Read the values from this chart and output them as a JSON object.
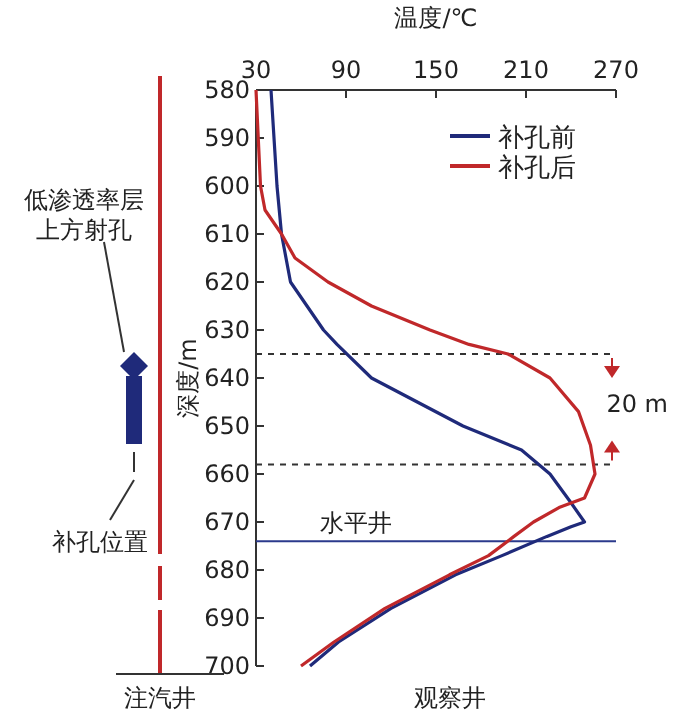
{
  "chart_data": {
    "type": "line",
    "xlabel": "温度/℃",
    "ylabel": "深度/m",
    "xlim": [
      30,
      270
    ],
    "xticks": [
      30,
      90,
      150,
      210,
      270
    ],
    "ylim": [
      700,
      580
    ],
    "yticks": [
      580,
      590,
      600,
      610,
      620,
      630,
      640,
      650,
      660,
      670,
      680,
      690,
      700
    ],
    "legend": "top right",
    "grid": false,
    "marker": "none",
    "line_style": "solid",
    "series": [
      {
        "name": "补孔前",
        "color": "#1f2a7a",
        "x": [
          40,
          44,
          47,
          53,
          75,
          84,
          107,
          168,
          207,
          226,
          240,
          249,
          240,
          224,
          194,
          163,
          120,
          85,
          66
        ],
        "values": [
          580,
          600,
          610,
          620,
          630,
          633,
          640,
          650,
          655,
          660,
          666,
          670,
          671,
          673,
          677,
          681,
          688,
          695,
          700
        ]
      },
      {
        "name": "补孔后",
        "color": "#c0282a",
        "x": [
          30,
          33,
          36,
          47,
          56,
          78,
          107,
          146,
          172,
          198,
          226,
          245,
          253,
          256,
          249,
          232,
          215,
          202,
          185,
          159,
          116,
          82,
          60
        ],
        "values": [
          580,
          600,
          605,
          610,
          615,
          620,
          625,
          630,
          633,
          635,
          640,
          647,
          654,
          660,
          665,
          667,
          670,
          673,
          677,
          681,
          688,
          695,
          700
        ]
      }
    ],
    "ref_lines": [
      {
        "axis": "y",
        "value": 635,
        "color": "#333333",
        "line_style": "dashed"
      },
      {
        "axis": "y",
        "value": 658,
        "color": "#333333",
        "line_style": "dashed"
      },
      {
        "axis": "y",
        "value": 674,
        "label": "水平井",
        "color": "#2b3a8c",
        "line_style": "solid"
      }
    ],
    "annotations": [
      "20 m",
      "注汽井",
      "观察井",
      "低渗透率层上方射孔",
      "补孔位置"
    ]
  }
}
